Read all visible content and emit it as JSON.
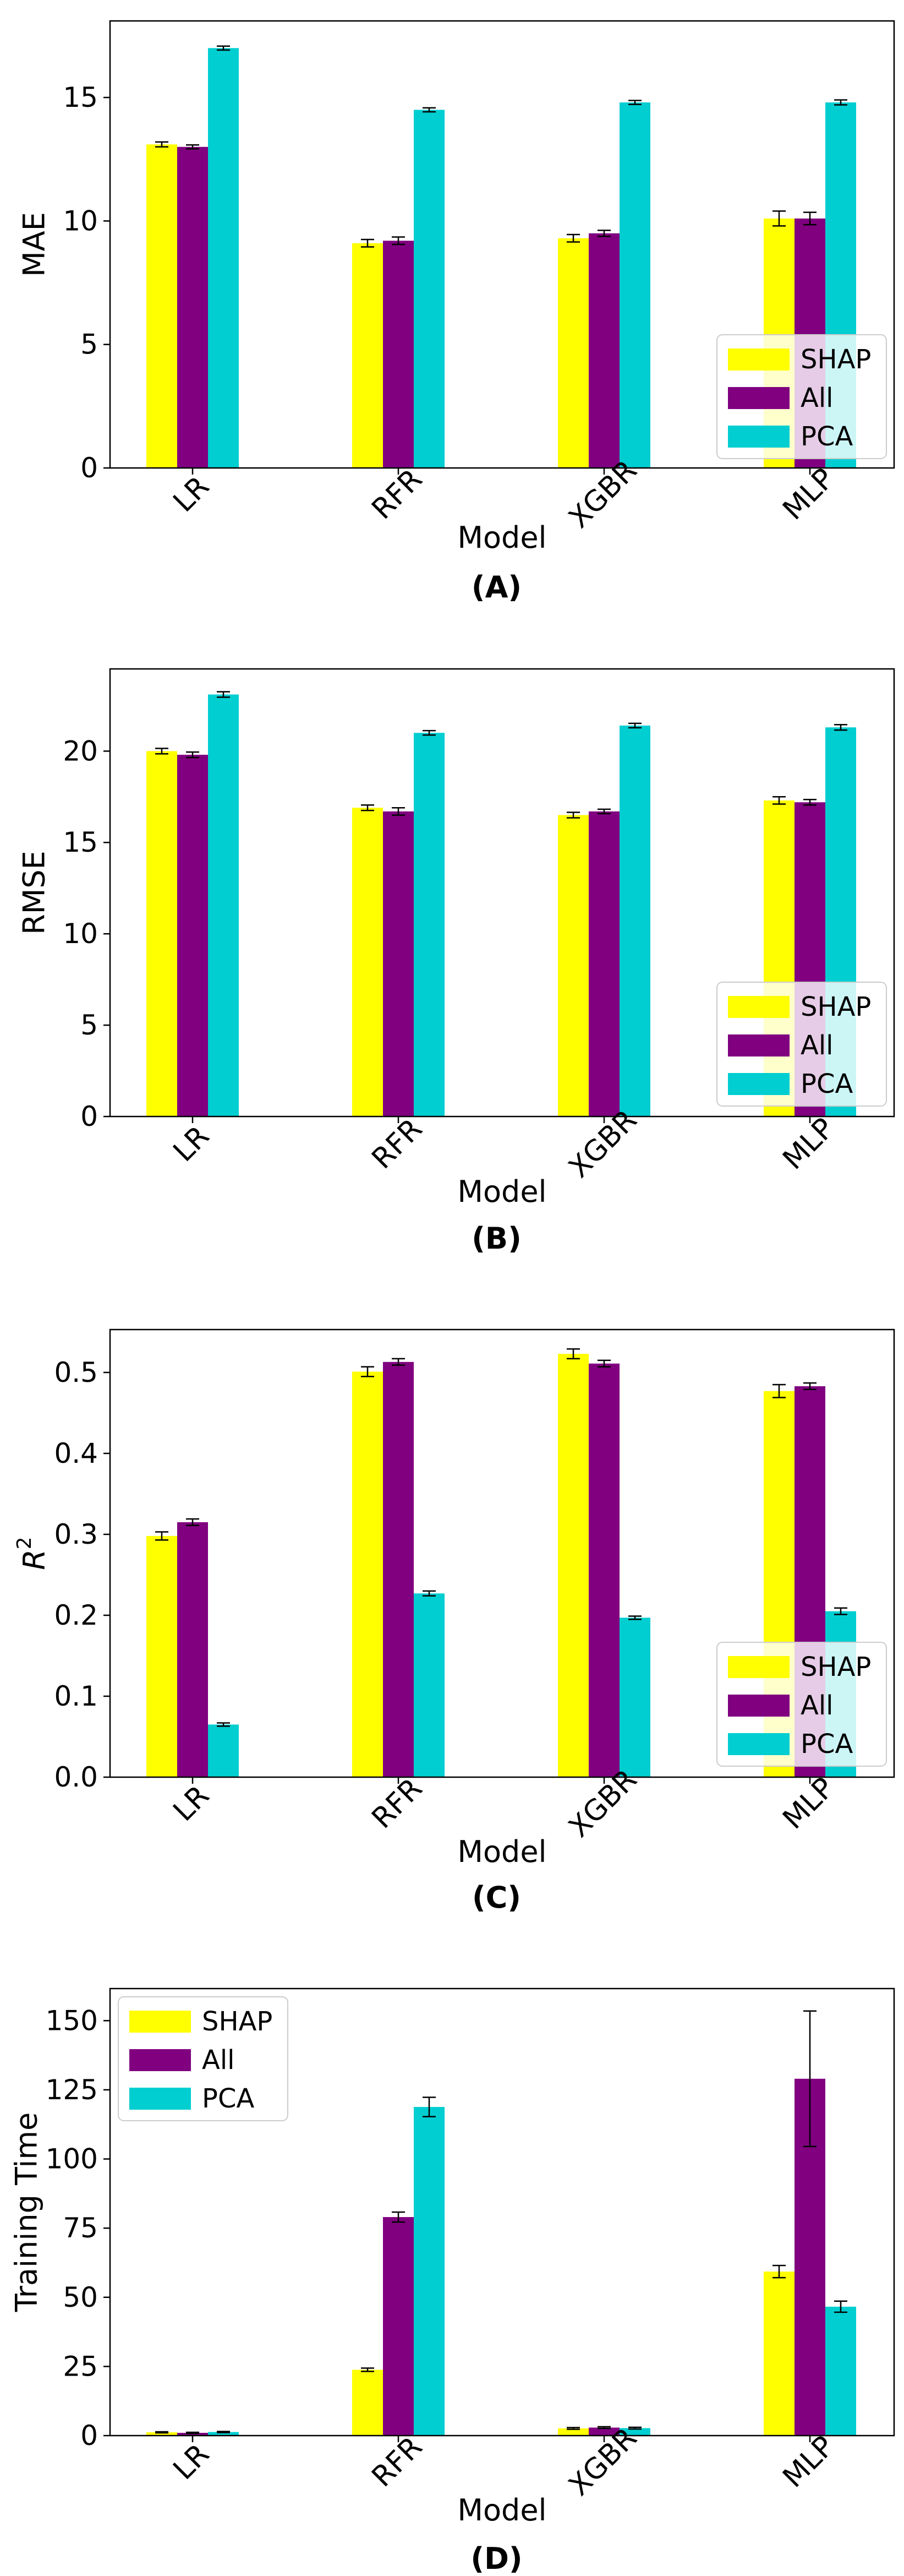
{
  "legend_labels": [
    "SHAP",
    "All",
    "PCA"
  ],
  "colors": {
    "SHAP": "#ffff00",
    "All": "#800080",
    "PCA": "#00ced1"
  },
  "chart_data": [
    {
      "type": "bar",
      "panel_label": "(A)",
      "xlabel": "Model",
      "ylabel": "MAE",
      "categories": [
        "LR",
        "RFR",
        "XGBR",
        "MLP"
      ],
      "ylim": [
        0,
        18.1
      ],
      "yticks": [
        0,
        5,
        10,
        15
      ],
      "yticklabels": [
        "0",
        "5",
        "10",
        "15"
      ],
      "legend_position": "lower-right",
      "series": [
        {
          "name": "SHAP",
          "values": [
            13.1,
            9.1,
            9.3,
            10.1
          ],
          "errors": [
            0.1,
            0.15,
            0.15,
            0.3
          ]
        },
        {
          "name": "All",
          "values": [
            13.0,
            9.2,
            9.5,
            10.1
          ],
          "errors": [
            0.08,
            0.15,
            0.12,
            0.25
          ]
        },
        {
          "name": "PCA",
          "values": [
            17.0,
            14.5,
            14.8,
            14.8
          ],
          "errors": [
            0.08,
            0.08,
            0.08,
            0.1
          ]
        }
      ]
    },
    {
      "type": "bar",
      "panel_label": "(B)",
      "xlabel": "Model",
      "ylabel": "RMSE",
      "categories": [
        "LR",
        "RFR",
        "XGBR",
        "MLP"
      ],
      "ylim": [
        0,
        24.5
      ],
      "yticks": [
        0,
        5,
        10,
        15,
        20
      ],
      "yticklabels": [
        "0",
        "5",
        "10",
        "15",
        "20"
      ],
      "legend_position": "lower-right",
      "series": [
        {
          "name": "SHAP",
          "values": [
            20.0,
            16.9,
            16.5,
            17.3
          ],
          "errors": [
            0.15,
            0.15,
            0.15,
            0.2
          ]
        },
        {
          "name": "All",
          "values": [
            19.8,
            16.7,
            16.7,
            17.2
          ],
          "errors": [
            0.15,
            0.2,
            0.12,
            0.15
          ]
        },
        {
          "name": "PCA",
          "values": [
            23.1,
            21.0,
            21.4,
            21.3
          ],
          "errors": [
            0.15,
            0.12,
            0.12,
            0.15
          ]
        }
      ]
    },
    {
      "type": "bar",
      "panel_label": "(C)",
      "xlabel": "Model",
      "ylabel": "R²",
      "categories": [
        "LR",
        "RFR",
        "XGBR",
        "MLP"
      ],
      "ylim": [
        0,
        0.553
      ],
      "yticks": [
        0,
        0.1,
        0.2,
        0.3,
        0.4,
        0.5
      ],
      "yticklabels": [
        "0.0",
        "0.1",
        "0.2",
        "0.3",
        "0.4",
        "0.5"
      ],
      "legend_position": "lower-right",
      "series": [
        {
          "name": "SHAP",
          "values": [
            0.298,
            0.501,
            0.523,
            0.477
          ],
          "errors": [
            0.005,
            0.006,
            0.006,
            0.008
          ]
        },
        {
          "name": "All",
          "values": [
            0.315,
            0.513,
            0.511,
            0.483
          ],
          "errors": [
            0.004,
            0.004,
            0.004,
            0.004
          ]
        },
        {
          "name": "PCA",
          "values": [
            0.065,
            0.227,
            0.197,
            0.205
          ],
          "errors": [
            0.002,
            0.003,
            0.002,
            0.004
          ]
        }
      ]
    },
    {
      "type": "bar",
      "panel_label": "(D)",
      "xlabel": "Model",
      "ylabel": "Training Time",
      "categories": [
        "LR",
        "RFR",
        "XGBR",
        "MLP"
      ],
      "ylim": [
        0,
        161.6
      ],
      "yticks": [
        0,
        25,
        50,
        75,
        100,
        125,
        150
      ],
      "yticklabels": [
        "0",
        "25",
        "50",
        "75",
        "100",
        "125",
        "150"
      ],
      "legend_position": "upper-left",
      "series": [
        {
          "name": "SHAP",
          "values": [
            1.2,
            23.8,
            2.6,
            59.3
          ],
          "errors": [
            0.2,
            0.6,
            0.3,
            2.2
          ]
        },
        {
          "name": "All",
          "values": [
            1.0,
            79.0,
            2.9,
            129.0
          ],
          "errors": [
            0.2,
            1.8,
            0.3,
            24.5
          ]
        },
        {
          "name": "PCA",
          "values": [
            1.3,
            118.8,
            2.7,
            46.6
          ],
          "errors": [
            0.2,
            3.5,
            0.3,
            2.0
          ]
        }
      ]
    }
  ]
}
